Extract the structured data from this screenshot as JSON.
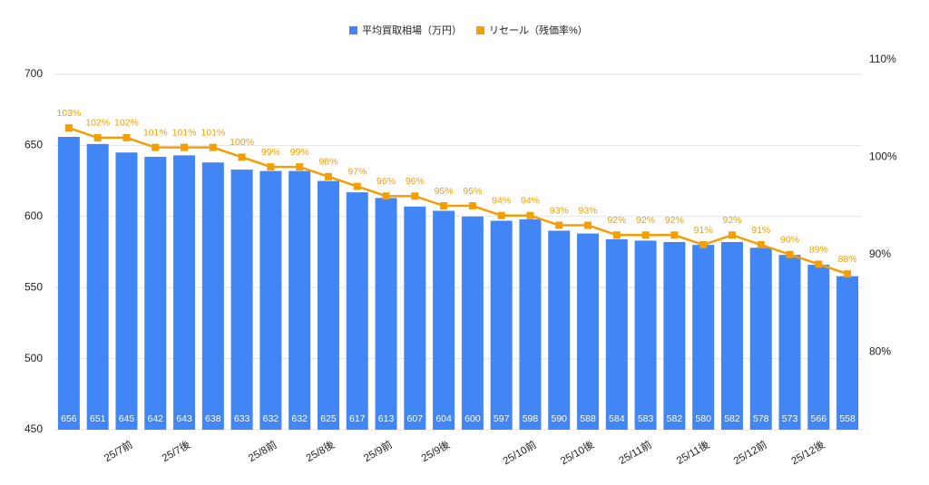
{
  "chart_data": {
    "type": "bar_line",
    "categories": [
      null,
      null,
      "25/7前",
      null,
      "25/7後",
      null,
      null,
      "25/8前",
      null,
      "25/8後",
      null,
      "25/9前",
      null,
      "25/9後",
      null,
      null,
      "25/10前",
      null,
      "25/10後",
      null,
      "25/11前",
      null,
      "25/11後",
      null,
      "25/12前",
      null,
      "25/12後",
      null
    ],
    "series": [
      {
        "name": "平均買取相場（万円）",
        "color": "#4285f4",
        "type": "bar",
        "values": [
          656,
          651,
          645,
          642,
          643,
          638,
          633,
          632,
          632,
          625,
          617,
          613,
          607,
          604,
          600,
          597,
          598,
          590,
          588,
          584,
          583,
          582,
          580,
          582,
          578,
          573,
          566,
          558
        ]
      },
      {
        "name": "リセール（残価率%）",
        "color": "#f29f05",
        "type": "line",
        "axis": "y2",
        "values": [
          103,
          102,
          102,
          101,
          101,
          101,
          100,
          99,
          99,
          98,
          97,
          96,
          96,
          95,
          95,
          94,
          94,
          93,
          93,
          92,
          92,
          92,
          91,
          92,
          91,
          90,
          89,
          88
        ],
        "value_labels": [
          "103%",
          "102%",
          "102%",
          "101%",
          "101%",
          "101%",
          "100%",
          "99%",
          "99%",
          "98%",
          "97%",
          "96%",
          "96%",
          "95%",
          "95%",
          "94%",
          "94%",
          "93%",
          "93%",
          "92%",
          "92%",
          "92%",
          "91%",
          "92%",
          "91%",
          "90%",
          "89%",
          "88%"
        ]
      }
    ],
    "ylim": [
      450,
      700
    ],
    "yticks": [
      450,
      500,
      550,
      600,
      650,
      700
    ],
    "y2lim": [
      72,
      110
    ],
    "y2ticks": [
      {
        "value": 80,
        "label": "80%"
      },
      {
        "value": 90,
        "label": "90%"
      },
      {
        "value": 100,
        "label": "100%"
      },
      {
        "value": 110,
        "label": "110%"
      }
    ],
    "grid": true,
    "legend": "top"
  }
}
